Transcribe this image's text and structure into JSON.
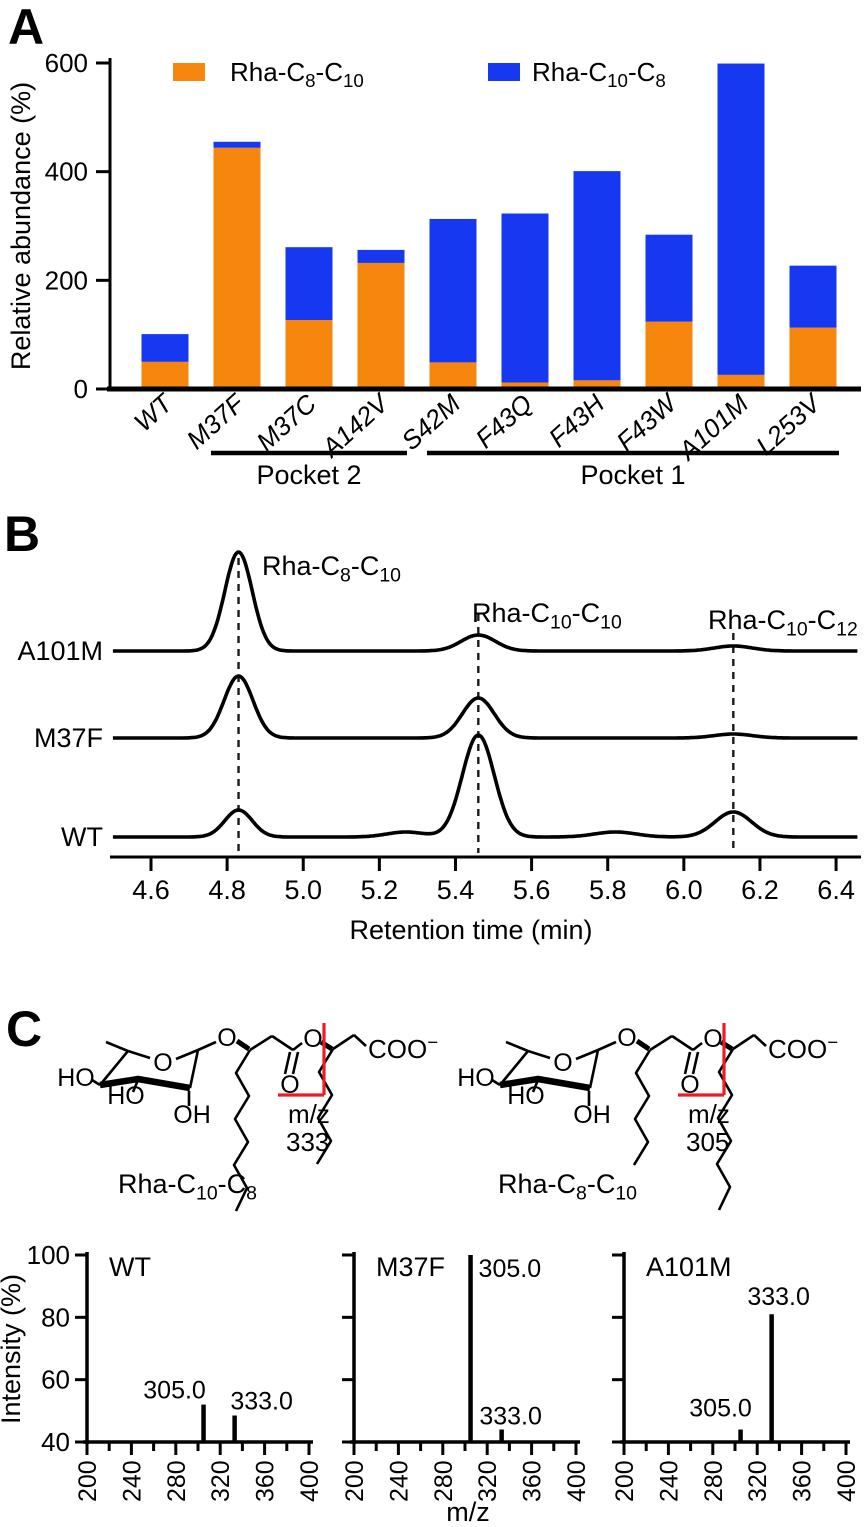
{
  "colors": {
    "orange": "#F6860D",
    "blue": "#1538F0",
    "red": "#EC1C24",
    "ink": "#000000"
  },
  "panel_a": {
    "letter": "A"
  },
  "panel_b": {
    "letter": "B"
  },
  "panel_c": {
    "letter": "C",
    "structures": [
      {
        "name": "Rha-C~10~-C~8~",
        "fragment": {
          "prefix": "m/z",
          "value": "333"
        },
        "atoms": {
          "ho1": "HO",
          "ho2": "HO",
          "oh": "OH",
          "ring_o": "O",
          "glyc_o": "O",
          "ester_o": "O",
          "carbonyl_o": "O",
          "coo": "COO^−^"
        },
        "chain_under_sugar": "long",
        "chain_after_ester": "short"
      },
      {
        "name": "Rha-C~8~-C~10~",
        "fragment": {
          "prefix": "m/z",
          "value": "305"
        },
        "atoms": {
          "ho1": "HO",
          "ho2": "HO",
          "oh": "OH",
          "ring_o": "O",
          "glyc_o": "O",
          "ester_o": "O",
          "carbonyl_o": "O",
          "coo": "COO^−^"
        },
        "chain_under_sugar": "short",
        "chain_after_ester": "long"
      }
    ]
  },
  "chart_data": [
    {
      "type": "bar",
      "panel": "A",
      "stacked": true,
      "ylabel": "Relative abundance (%)",
      "ylim": [
        0,
        600
      ],
      "yticks": [
        0,
        200,
        400,
        600
      ],
      "categories": [
        "WT",
        "M37F",
        "M37C",
        "A142V",
        "S42M",
        "F43Q",
        "F43H",
        "F43W",
        "A101M",
        "L253V"
      ],
      "series": [
        {
          "name": "Rha-C~8~-C~10~",
          "color": "#F6860D",
          "values": [
            50,
            444,
            127,
            232,
            49,
            12,
            16,
            124,
            26,
            113
          ]
        },
        {
          "name": "Rha-C~10~-C~8~",
          "color": "#1538F0",
          "values": [
            51,
            11,
            134,
            24,
            264,
            311,
            385,
            160,
            573,
            114
          ]
        }
      ],
      "legend_position": "top",
      "group_brackets": [
        {
          "label": "Pocket 2",
          "from": "M37F",
          "to": "A142V"
        },
        {
          "label": "Pocket 1",
          "from": "S42M",
          "to": "L253V"
        }
      ]
    },
    {
      "type": "line",
      "panel": "B",
      "kind": "chromatogram",
      "xlabel": "Retention time (min)",
      "xlim": [
        4.5,
        6.46
      ],
      "xticks": [
        4.6,
        4.8,
        5.0,
        5.2,
        5.4,
        5.6,
        5.8,
        6.0,
        6.2,
        6.4
      ],
      "dashed_guides_min": [
        4.83,
        5.46,
        6.13
      ],
      "peak_annotations": [
        {
          "text": "Rha-C~8~-C~10~",
          "x": 4.83
        },
        {
          "text": "Rha-C~10~-C~10~",
          "x": 5.46
        },
        {
          "text": "Rha-C~10~-C~12~",
          "x": 6.13
        }
      ],
      "traces": [
        {
          "name": "A101M",
          "peaks": [
            {
              "t": 4.83,
              "h": 99,
              "w": 0.036
            },
            {
              "t": 5.46,
              "h": 16,
              "w": 0.045
            },
            {
              "t": 6.13,
              "h": 5,
              "w": 0.05
            }
          ]
        },
        {
          "name": "M37F",
          "peaks": [
            {
              "t": 4.83,
              "h": 62,
              "w": 0.038
            },
            {
              "t": 5.46,
              "h": 40,
              "w": 0.042
            },
            {
              "t": 6.13,
              "h": 4,
              "w": 0.05
            }
          ]
        },
        {
          "name": "WT",
          "peaks": [
            {
              "t": 4.83,
              "h": 27,
              "w": 0.036
            },
            {
              "t": 5.27,
              "h": 5,
              "w": 0.05
            },
            {
              "t": 5.46,
              "h": 102,
              "w": 0.042
            },
            {
              "t": 5.82,
              "h": 5,
              "w": 0.055
            },
            {
              "t": 6.13,
              "h": 25,
              "w": 0.048
            }
          ]
        }
      ]
    },
    {
      "type": "bar",
      "panel": "C",
      "kind": "mass-spectra",
      "xlabel": "m/z",
      "ylabel": "Intensity (%)",
      "ylim": [
        40,
        100
      ],
      "yticks": [
        40,
        60,
        80,
        100
      ],
      "xlim": [
        200,
        400
      ],
      "xticks_major": [
        200,
        240,
        280,
        320,
        360,
        400
      ],
      "xtick_minor_step": 20,
      "spectra": [
        {
          "name": "WT",
          "peaks": [
            {
              "mz": 305.0,
              "intensity": 52,
              "label": "305.0"
            },
            {
              "mz": 333.0,
              "intensity": 48.5,
              "label": "333.0"
            }
          ]
        },
        {
          "name": "M37F",
          "peaks": [
            {
              "mz": 305.0,
              "intensity": 100,
              "label": "305.0"
            },
            {
              "mz": 333.0,
              "intensity": 44,
              "label": "333.0"
            }
          ]
        },
        {
          "name": "A101M",
          "peaks": [
            {
              "mz": 305.0,
              "intensity": 44,
              "label": "305.0"
            },
            {
              "mz": 333.0,
              "intensity": 81,
              "label": "333.0"
            }
          ]
        }
      ]
    }
  ]
}
